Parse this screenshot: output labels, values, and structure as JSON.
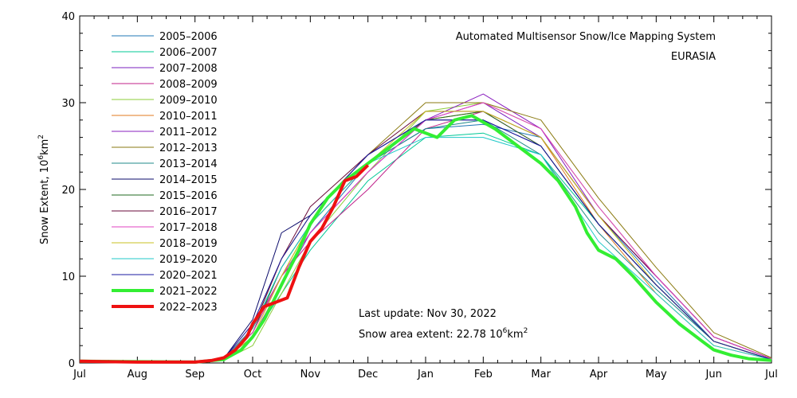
{
  "chart_data": {
    "type": "line",
    "title": "Automated  Multisensor Snow/Ice Mapping System",
    "subtitle": "EURASIA",
    "xlabel": "",
    "ylabel_main": "Snow Extent, 10",
    "ylabel_sup": "6",
    "ylabel_unit": "km",
    "ylabel_sup2": "2",
    "ylim": [
      0,
      40
    ],
    "yticks": [
      "0",
      "10",
      "20",
      "30",
      "40"
    ],
    "yticks_values": [
      0,
      10,
      20,
      30,
      40
    ],
    "xlim": [
      0,
      12
    ],
    "xticks": [
      "Jul",
      "Aug",
      "Sep",
      "Oct",
      "Nov",
      "Dec",
      "Jan",
      "Feb",
      "Mar",
      "Apr",
      "May",
      "Jun",
      "Jul"
    ],
    "grid": false,
    "legend_position": "top-left",
    "series": [
      {
        "name": "2005–2006",
        "color": "#1f77b4",
        "x": [
          0,
          2,
          2.5,
          3,
          3.5,
          4,
          5,
          6,
          7,
          8,
          9,
          10,
          11,
          12
        ],
        "y": [
          0.2,
          0.1,
          0.4,
          4,
          10,
          15,
          23,
          27,
          27.5,
          26,
          17,
          9.5,
          2.5,
          0.4
        ]
      },
      {
        "name": "2006–2007",
        "color": "#00c896",
        "x": [
          0,
          2,
          2.5,
          3,
          3.5,
          4,
          5,
          6,
          7,
          8,
          9,
          10,
          11,
          12
        ],
        "y": [
          0.2,
          0.1,
          0.4,
          3,
          8,
          13,
          21,
          26,
          26.5,
          24,
          16,
          9,
          2.5,
          0.4
        ]
      },
      {
        "name": "2007–2008",
        "color": "#7a1fbf",
        "x": [
          0,
          2,
          2.5,
          3,
          3.5,
          4,
          5,
          6,
          7,
          8,
          9,
          10,
          11,
          12
        ],
        "y": [
          0.2,
          0.1,
          0.4,
          3.5,
          10,
          15,
          22,
          28,
          30,
          26,
          17,
          10,
          3,
          0.5
        ]
      },
      {
        "name": "2008–2009",
        "color": "#c0208a",
        "x": [
          0,
          2,
          2.5,
          3,
          3.5,
          4,
          5,
          6,
          7,
          8,
          9,
          10,
          11,
          12
        ],
        "y": [
          0.2,
          0.1,
          0.5,
          4,
          10,
          14,
          20,
          27,
          29,
          25,
          16,
          9,
          2.5,
          0.4
        ]
      },
      {
        "name": "2009–2010",
        "color": "#8dcc3a",
        "x": [
          0,
          2,
          2.5,
          3,
          3.5,
          4,
          5,
          6,
          7,
          8,
          9,
          10,
          11,
          12
        ],
        "y": [
          0.2,
          0.1,
          0.3,
          2,
          8,
          14,
          22,
          29,
          30,
          27,
          18,
          10,
          3,
          0.5
        ]
      },
      {
        "name": "2010–2011",
        "color": "#e07a1f",
        "x": [
          0,
          2,
          2.5,
          3,
          3.5,
          4,
          5,
          6,
          7,
          8,
          9,
          10,
          11,
          12
        ],
        "y": [
          0.2,
          0.1,
          0.4,
          3.5,
          10,
          16,
          23,
          28,
          29,
          26,
          16,
          8,
          2,
          0.4
        ]
      },
      {
        "name": "2011–2012",
        "color": "#8a1fbf",
        "x": [
          0,
          2,
          2.5,
          3,
          3.5,
          4,
          5,
          6,
          7,
          8,
          9,
          10,
          11,
          12
        ],
        "y": [
          0.2,
          0.1,
          0.4,
          3,
          9,
          15,
          22,
          28,
          31,
          27,
          17,
          10,
          3,
          0.5
        ]
      },
      {
        "name": "2012–2013",
        "color": "#8a7a10",
        "x": [
          0,
          2,
          2.5,
          3,
          3.5,
          4,
          5,
          6,
          7,
          8,
          9,
          10,
          11,
          12
        ],
        "y": [
          0.2,
          0.1,
          0.4,
          4,
          12,
          17,
          24,
          30,
          30,
          28,
          19,
          11,
          3.5,
          0.6
        ]
      },
      {
        "name": "2013–2014",
        "color": "#1f8a8a",
        "x": [
          0,
          2,
          2.5,
          3,
          3.5,
          4,
          5,
          6,
          7,
          8,
          9,
          10,
          11,
          12
        ],
        "y": [
          0.2,
          0.1,
          0.4,
          4,
          11,
          16,
          23,
          27,
          28,
          24,
          15,
          8.5,
          2.5,
          0.4
        ]
      },
      {
        "name": "2014–2015",
        "color": "#0a0a6a",
        "x": [
          0,
          2,
          2.5,
          3,
          3.5,
          4,
          5,
          6,
          7,
          8,
          9,
          10,
          11,
          12
        ],
        "y": [
          0.2,
          0.1,
          0.5,
          5,
          15,
          17,
          24,
          28,
          28,
          25,
          16,
          9,
          2.5,
          0.4
        ]
      },
      {
        "name": "2015–2016",
        "color": "#1f6a1f",
        "x": [
          0,
          2,
          2.5,
          3,
          3.5,
          4,
          5,
          6,
          7,
          8,
          9,
          10,
          11,
          12
        ],
        "y": [
          0.2,
          0.1,
          0.4,
          3.5,
          11,
          16,
          23,
          28,
          29,
          25,
          16,
          9,
          2.5,
          0.4
        ]
      },
      {
        "name": "2016–2017",
        "color": "#6a0a3a",
        "x": [
          0,
          2,
          2.5,
          3,
          3.5,
          4,
          5,
          6,
          7,
          8,
          9,
          10,
          11,
          12
        ],
        "y": [
          0.2,
          0.1,
          0.5,
          4,
          12,
          18,
          24,
          29,
          29,
          26,
          17,
          10,
          3,
          0.5
        ]
      },
      {
        "name": "2017–2018",
        "color": "#e040c0",
        "x": [
          0,
          2,
          2.5,
          3,
          3.5,
          4,
          5,
          6,
          7,
          8,
          9,
          10,
          11,
          12
        ],
        "y": [
          0.2,
          0.1,
          0.4,
          3.5,
          10,
          15,
          22,
          28,
          30,
          27,
          18,
          10,
          3,
          0.5
        ]
      },
      {
        "name": "2018–2019",
        "color": "#c8c020",
        "x": [
          0,
          2,
          2.5,
          3,
          3.5,
          4,
          5,
          6,
          7,
          8,
          9,
          10,
          11,
          12
        ],
        "y": [
          0.2,
          0.1,
          0.4,
          3,
          10,
          16,
          23,
          29,
          29,
          26,
          17,
          9,
          2.5,
          0.4
        ]
      },
      {
        "name": "2019–2020",
        "color": "#20c8c8",
        "x": [
          0,
          2,
          2.5,
          3,
          3.5,
          4,
          5,
          6,
          7,
          8,
          9,
          10,
          11,
          12
        ],
        "y": [
          0.2,
          0.1,
          0.4,
          4,
          11,
          16,
          23,
          26,
          26,
          24,
          14,
          8,
          2,
          0.4
        ]
      },
      {
        "name": "2020–2021",
        "color": "#1a1aa0",
        "x": [
          0,
          2,
          2.5,
          3,
          3.5,
          4,
          5,
          6,
          7,
          8,
          9,
          10,
          11,
          12
        ],
        "y": [
          0.2,
          0.1,
          0.5,
          4.5,
          12,
          17,
          24,
          28,
          28,
          25,
          16,
          9,
          2.5,
          0.4
        ]
      },
      {
        "name": "2021–2022",
        "color": "#33ee33",
        "x": [
          0,
          2,
          2.5,
          2.8,
          3,
          3.2,
          3.5,
          3.8,
          4,
          4.3,
          4.6,
          5,
          5.4,
          5.8,
          6.2,
          6.5,
          6.8,
          7.2,
          7.6,
          8,
          8.3,
          8.6,
          8.8,
          9,
          9.3,
          9.6,
          10,
          10.4,
          10.8,
          11,
          11.3,
          11.6,
          12
        ],
        "y": [
          0.2,
          0.1,
          0.4,
          1.5,
          3,
          5,
          9,
          13,
          16,
          19,
          21,
          23,
          25,
          27,
          26,
          28,
          28.5,
          27,
          25,
          23,
          21,
          18,
          15,
          13,
          12,
          10,
          7,
          4.5,
          2.5,
          1.5,
          0.9,
          0.5,
          0.3
        ]
      },
      {
        "name": "2022–2023",
        "color": "#ee1111",
        "x": [
          0,
          1,
          2,
          2.3,
          2.5,
          2.7,
          2.9,
          3,
          3.2,
          3.4,
          3.6,
          3.8,
          4,
          4.2,
          4.4,
          4.6,
          4.8,
          5
        ],
        "y": [
          0.2,
          0.1,
          0.1,
          0.3,
          0.6,
          1.5,
          3,
          4.5,
          6.5,
          7,
          7.5,
          11,
          14,
          15.5,
          18,
          21,
          21.5,
          22.8
        ]
      }
    ]
  },
  "info": {
    "last_update": "Last update: Nov 30, 2022",
    "extent_prefix": "Snow area extent: 22.78 10",
    "extent_sup": "6",
    "extent_unit": "km",
    "extent_sup2": "2"
  }
}
